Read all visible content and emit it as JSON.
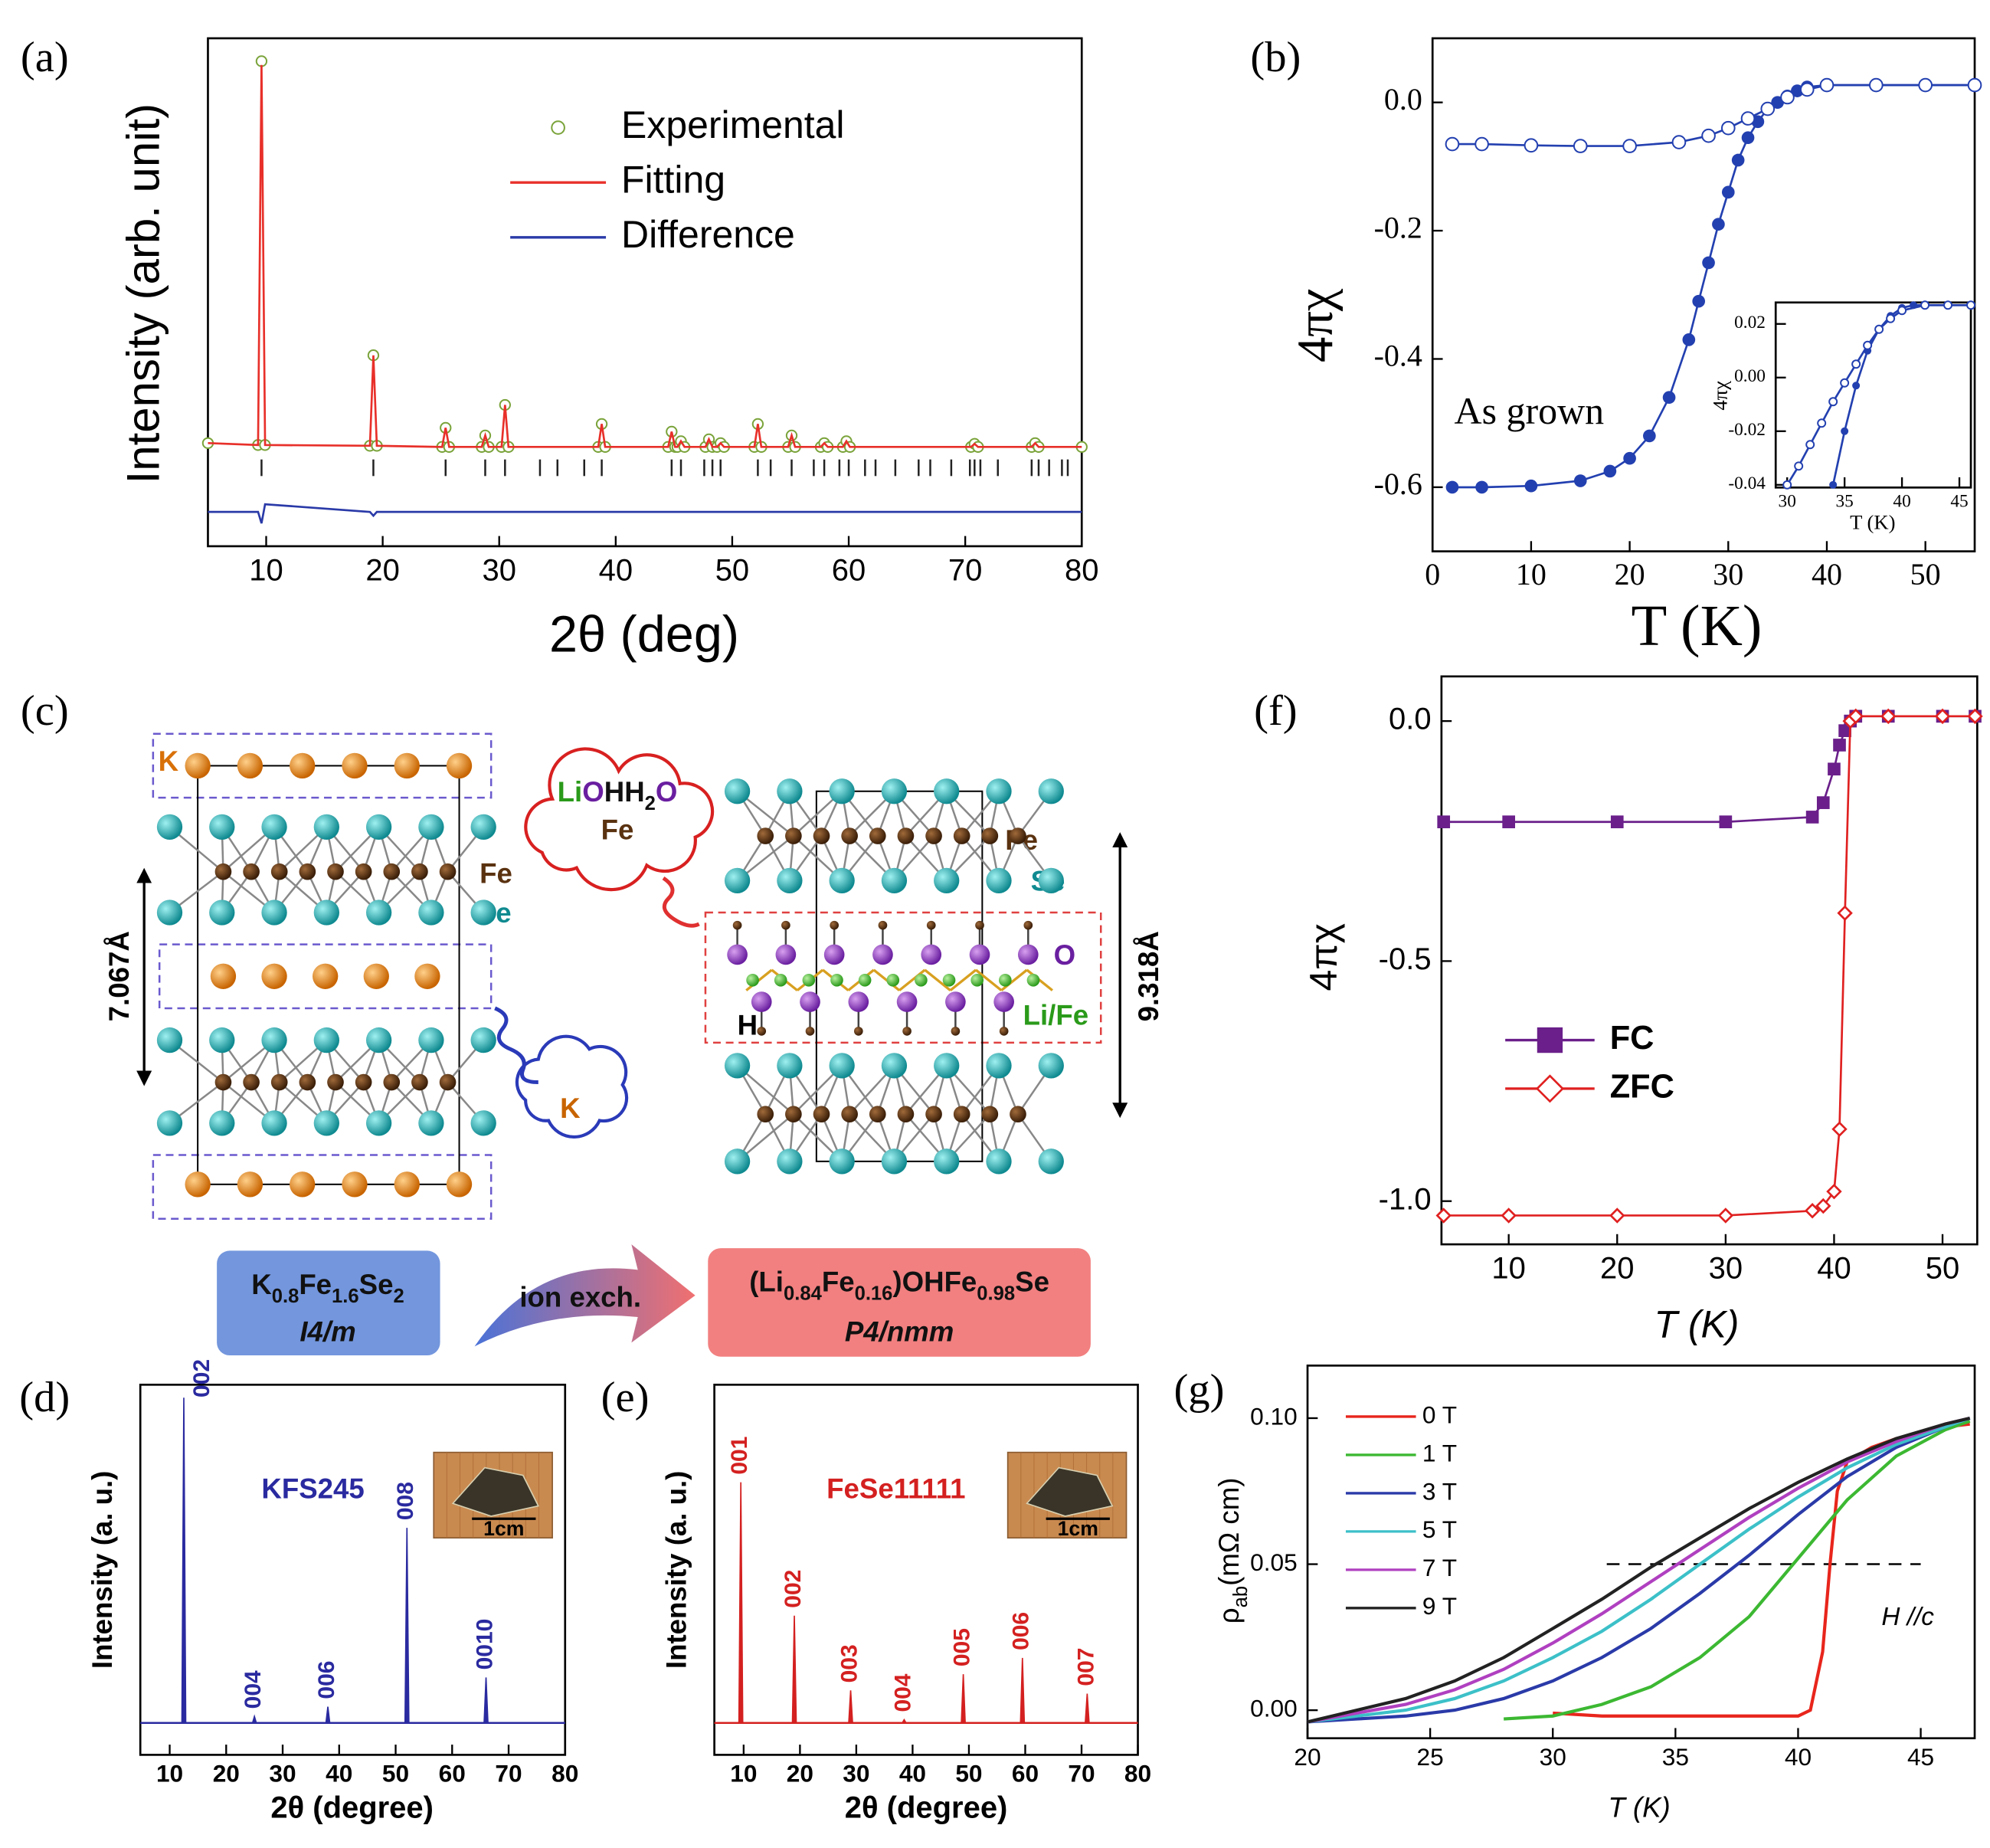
{
  "diagram": {
    "panel": "(c)",
    "left_labels": {
      "k": "K",
      "fe": "Fe",
      "se": "Se"
    },
    "left_spacing": "7.067Å",
    "cloud_red": [
      "Li",
      "O",
      "HH",
      "2",
      "O"
    ],
    "cloud_red_fe": "Fe",
    "cloud_blue": "K",
    "right_labels": {
      "fe": "Fe",
      "se": "Se",
      "o": "O",
      "life": "Li/Fe",
      "h": "H"
    },
    "right_spacing": "9.318Å",
    "left_formula": [
      "K",
      "0.8",
      "Fe",
      "1.6",
      "Se",
      "2"
    ],
    "left_group": "I4/m",
    "exchange": "ion exch.",
    "right_formula": [
      "(Li",
      "0.84",
      "Fe",
      "0.16",
      ")OHFe",
      "0.98",
      "Se"
    ],
    "right_group": "P4/nmm"
  },
  "chart_data": [
    {
      "type": "line",
      "panel": "(a)",
      "x_label": "2θ (deg)",
      "y_label": "Intensity (arb. unit)",
      "xlim": [
        5,
        80
      ],
      "ylim": [
        -0.26,
        1.07
      ],
      "xticks": [
        10,
        20,
        30,
        40,
        50,
        60,
        70,
        80
      ],
      "yticks": [],
      "x": [
        5,
        9.3,
        9.6,
        9.9,
        18.9,
        19.2,
        19.5,
        25.1,
        25.4,
        25.7,
        28.5,
        28.8,
        29.1,
        30.2,
        30.5,
        30.8,
        38.5,
        38.8,
        39.1,
        44.5,
        44.8,
        45.1,
        45.3,
        45.6,
        45.9,
        47.7,
        48,
        48.3,
        48.7,
        49,
        49.3,
        51.9,
        52.2,
        52.5,
        54.8,
        55.1,
        55.4,
        57.6,
        57.9,
        58.2,
        59.5,
        59.8,
        60.1,
        70.5,
        70.8,
        71.1,
        75.7,
        76,
        76.3,
        80
      ],
      "series": [
        {
          "name": "Experimental",
          "color": "#7aa33a",
          "marker": "open-circle",
          "line": false,
          "values": [
            0.01,
            0.005,
            1.01,
            0.005,
            0.003,
            0.24,
            0.003,
            0,
            0.05,
            0,
            0,
            0.03,
            0,
            0,
            0.11,
            0,
            0,
            0.06,
            0,
            0,
            0.04,
            0,
            0,
            0.015,
            0,
            0,
            0.02,
            0,
            0,
            0.01,
            0,
            0,
            0.06,
            0,
            0,
            0.03,
            0,
            0,
            0.01,
            0,
            0,
            0.015,
            0,
            0,
            0.008,
            0,
            0,
            0.01,
            0,
            0
          ]
        },
        {
          "name": "Fitting",
          "color": "#e8302a",
          "values": [
            0.01,
            0.005,
            1.0,
            0.005,
            0.003,
            0.24,
            0.003,
            0,
            0.05,
            0,
            0,
            0.03,
            0,
            0,
            0.11,
            0,
            0,
            0.06,
            0,
            0,
            0.04,
            0,
            0,
            0.015,
            0,
            0,
            0.02,
            0,
            0,
            0.01,
            0,
            0,
            0.06,
            0,
            0,
            0.03,
            0,
            0,
            0.01,
            0,
            0,
            0.015,
            0,
            0,
            0.008,
            0,
            0,
            0.01,
            0,
            0
          ]
        },
        {
          "name": "Difference",
          "color": "#2a3aa8",
          "values": [
            -0.17,
            -0.17,
            -0.2,
            -0.15,
            -0.17,
            -0.18,
            -0.17,
            -0.17,
            -0.17,
            -0.17,
            -0.17,
            -0.17,
            -0.17,
            -0.17,
            -0.17,
            -0.17,
            -0.17,
            -0.17,
            -0.17,
            -0.17,
            -0.17,
            -0.17,
            -0.17,
            -0.17,
            -0.17,
            -0.17,
            -0.17,
            -0.17,
            -0.17,
            -0.17,
            -0.17,
            -0.17,
            -0.17,
            -0.17,
            -0.17,
            -0.17,
            -0.17,
            -0.17,
            -0.17,
            -0.17,
            -0.17,
            -0.17,
            -0.17,
            -0.17,
            -0.17,
            -0.17,
            -0.17,
            -0.17,
            -0.17,
            -0.17
          ]
        }
      ],
      "reflections": [
        9.6,
        19.2,
        25.4,
        28.8,
        30.5,
        33.5,
        35,
        37.3,
        38.8,
        44.8,
        45.6,
        47.6,
        48.3,
        49,
        52.2,
        53.3,
        55.1,
        57,
        57.9,
        59.2,
        60,
        61.4,
        62.3,
        64,
        66,
        67,
        68.8,
        70.4,
        70.8,
        71.3,
        72.8,
        75.7,
        76.3,
        77.2,
        78.3,
        78.8
      ],
      "reflection_color": "#222222"
    },
    {
      "type": "line",
      "panel": "(b)",
      "x_label": "T (K)",
      "y_label": "4πχ",
      "annotation": "As grown",
      "xlim": [
        0,
        55
      ],
      "ylim": [
        -0.7,
        0.1
      ],
      "xticks": [
        0,
        10,
        20,
        30,
        40,
        50
      ],
      "yticks": [
        {
          "value": 0,
          "label": "0.0"
        },
        -0.2,
        -0.4,
        -0.6
      ],
      "series": [
        {
          "color": "#2340b0",
          "marker": "filled-circle",
          "x": [
            2,
            5,
            10,
            15,
            18,
            20,
            22,
            24,
            26,
            27,
            28,
            29,
            30,
            31,
            32,
            33,
            34,
            35,
            36,
            37,
            38,
            40,
            45,
            50,
            55
          ],
          "values": [
            -0.6,
            -0.6,
            -0.598,
            -0.59,
            -0.575,
            -0.555,
            -0.52,
            -0.46,
            -0.37,
            -0.31,
            -0.25,
            -0.19,
            -0.14,
            -0.09,
            -0.055,
            -0.03,
            -0.01,
            0.0,
            0.01,
            0.018,
            0.024,
            0.027,
            0.027,
            0.027,
            0.027
          ]
        },
        {
          "color": "#2340b0",
          "marker": "open-circle",
          "x": [
            2,
            5,
            10,
            15,
            20,
            25,
            28,
            30,
            32,
            34,
            36,
            38,
            40,
            45,
            50,
            55
          ],
          "values": [
            -0.065,
            -0.065,
            -0.067,
            -0.068,
            -0.068,
            -0.062,
            -0.052,
            -0.04,
            -0.025,
            -0.01,
            0.008,
            0.02,
            0.027,
            0.027,
            0.027,
            0.027
          ]
        }
      ]
    },
    {
      "type": "line",
      "x_label": "T (K)",
      "y_label": "4πχ",
      "xlim": [
        29,
        46
      ],
      "ylim": [
        -0.041,
        0.028
      ],
      "xticks": [
        30,
        35,
        40,
        45
      ],
      "yticks": [
        0.02,
        {
          "value": 0,
          "label": "0.00"
        },
        -0.02,
        -0.04
      ],
      "series": [
        {
          "color": "#2340b0",
          "marker": "filled-circle",
          "x": [
            34,
            35,
            36,
            37,
            38,
            39,
            40,
            41,
            42,
            44,
            46
          ],
          "values": [
            -0.04,
            -0.02,
            -0.003,
            0.01,
            0.018,
            0.023,
            0.026,
            0.027,
            0.027,
            0.027,
            0.027
          ]
        },
        {
          "color": "#2340b0",
          "marker": "open-circle",
          "x": [
            30,
            31,
            32,
            33,
            34,
            35,
            36,
            37,
            38,
            39,
            40,
            42,
            44,
            46
          ],
          "values": [
            -0.04,
            -0.033,
            -0.025,
            -0.017,
            -0.009,
            -0.002,
            0.005,
            0.012,
            0.018,
            0.022,
            0.025,
            0.027,
            0.027,
            0.027
          ]
        }
      ]
    },
    {
      "type": "stick",
      "panel": "(d)",
      "x_label": "2θ (degree)",
      "y_label": "Intensity (a. u.)",
      "annotation": "KFS245",
      "scale_label": "1cm",
      "color": "#2a2aa0",
      "xlim": [
        4.8,
        80
      ],
      "ylim": [
        -0.098,
        1.04
      ],
      "xticks": [
        10,
        20,
        30,
        40,
        50,
        60,
        70,
        80
      ],
      "yticks": [],
      "peaks": [
        12.5,
        25,
        38,
        52,
        66
      ],
      "values": [
        1.0,
        0.02,
        0.05,
        0.6,
        0.14
      ],
      "peak_labels": [
        "002",
        "004",
        "006",
        "008",
        "0010"
      ]
    },
    {
      "type": "stick",
      "panel": "(e)",
      "x_label": "2θ (degree)",
      "y_label": "Intensity (a. u.)",
      "annotation": "FeSe11111",
      "scale_label": "1cm",
      "color": "#d42020",
      "xlim": [
        4.8,
        80
      ],
      "ylim": [
        -0.098,
        1.04
      ],
      "xticks": [
        10,
        20,
        30,
        40,
        50,
        60,
        70,
        80
      ],
      "yticks": [],
      "peaks": [
        9.5,
        19,
        29,
        38.5,
        49,
        59.5,
        71
      ],
      "values": [
        0.74,
        0.33,
        0.1,
        0.01,
        0.15,
        0.2,
        0.09
      ],
      "peak_labels": [
        "001",
        "002",
        "003",
        "004",
        "005",
        "006",
        "007"
      ]
    },
    {
      "type": "line",
      "panel": "(f)",
      "x_label": "T (K)",
      "y_label": "4πχ",
      "xlim": [
        3.8,
        53.2
      ],
      "ylim": [
        -1.09,
        0.093
      ],
      "xticks": [
        10,
        20,
        30,
        40,
        50
      ],
      "yticks": [
        {
          "value": 0,
          "label": "0.0"
        },
        -0.5,
        {
          "value": -1,
          "label": "-1.0"
        }
      ],
      "x": [
        4,
        10,
        20,
        30,
        38,
        39,
        40,
        40.5,
        41,
        41.5,
        42,
        45,
        50,
        53
      ],
      "series": [
        {
          "name": "FC",
          "color": "#6a1f8a",
          "marker": "filled-square",
          "values": [
            -0.21,
            -0.21,
            -0.21,
            -0.21,
            -0.2,
            -0.17,
            -0.1,
            -0.05,
            -0.02,
            0.0,
            0.01,
            0.01,
            0.01,
            0.01
          ]
        },
        {
          "name": "ZFC",
          "color": "#e02020",
          "marker": "open-diamond",
          "values": [
            -1.03,
            -1.03,
            -1.03,
            -1.03,
            -1.02,
            -1.01,
            -0.98,
            -0.85,
            -0.4,
            0.0,
            0.01,
            0.01,
            0.01,
            0.01
          ]
        }
      ]
    },
    {
      "type": "line",
      "panel": "(g)",
      "x_label": "T (K)",
      "y_label": [
        "ρ",
        "ab",
        "(mΩ cm)"
      ],
      "annotation": "H //c",
      "xlim": [
        20,
        47.2
      ],
      "ylim": [
        -0.0096,
        0.118
      ],
      "xticks": [
        20,
        25,
        30,
        35,
        40,
        45
      ],
      "yticks": [
        {
          "value": 0,
          "label": "0.00"
        },
        0.05,
        {
          "value": 0.1,
          "label": "0.10"
        }
      ],
      "reference_line": {
        "value": 0.05,
        "x": [
          32.2,
          45
        ]
      },
      "x": [
        20,
        22,
        24,
        26,
        28,
        30,
        32,
        34,
        36,
        38,
        40,
        42,
        44,
        46,
        47
      ],
      "series": [
        {
          "name": "0 T",
          "color": "#e8251c",
          "x": [
            30,
            32,
            34,
            36,
            38,
            40,
            40.5,
            41,
            41.3,
            41.6,
            42,
            43,
            44,
            45,
            46,
            47
          ],
          "values": [
            -0.001,
            -0.002,
            -0.002,
            -0.002,
            -0.002,
            -0.002,
            0.0,
            0.02,
            0.05,
            0.075,
            0.085,
            0.09,
            0.093,
            0.095,
            0.097,
            0.098
          ]
        },
        {
          "name": "1 T",
          "color": "#3cb832",
          "values": [
            null,
            null,
            null,
            null,
            -0.003,
            -0.002,
            0.002,
            0.008,
            0.018,
            0.032,
            0.052,
            0.072,
            0.087,
            0.096,
            0.099
          ]
        },
        {
          "name": "3 T",
          "color": "#2a3aa8",
          "values": [
            -0.004,
            -0.003,
            -0.002,
            0.0,
            0.004,
            0.01,
            0.018,
            0.028,
            0.04,
            0.053,
            0.067,
            0.08,
            0.09,
            0.097,
            0.1
          ]
        },
        {
          "name": "5 T",
          "color": "#3cc0c8",
          "values": [
            -0.004,
            -0.002,
            0.0,
            0.004,
            0.01,
            0.018,
            0.027,
            0.038,
            0.05,
            0.062,
            0.073,
            0.083,
            0.091,
            0.097,
            0.1
          ]
        },
        {
          "name": "7 T",
          "color": "#b040c0",
          "values": [
            -0.004,
            -0.001,
            0.002,
            0.007,
            0.014,
            0.023,
            0.033,
            0.044,
            0.055,
            0.066,
            0.076,
            0.085,
            0.092,
            0.098,
            0.1
          ]
        },
        {
          "name": "9 T",
          "color": "#222222",
          "values": [
            -0.004,
            0.0,
            0.004,
            0.01,
            0.018,
            0.028,
            0.038,
            0.049,
            0.059,
            0.069,
            0.078,
            0.086,
            0.093,
            0.098,
            0.1
          ]
        }
      ]
    }
  ]
}
